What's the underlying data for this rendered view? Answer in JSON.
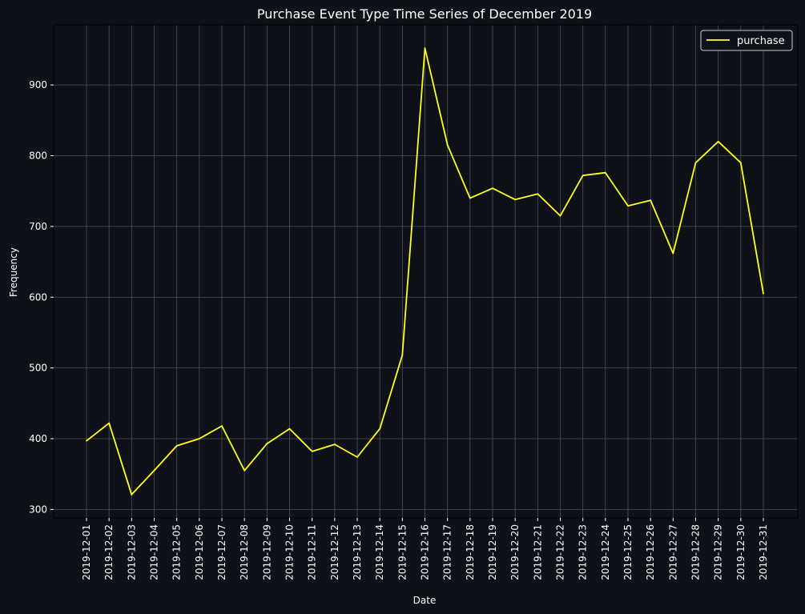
{
  "chart_data": {
    "type": "line",
    "title": "Purchase Event Type Time Series of December 2019",
    "xlabel": "Date",
    "ylabel": "Frequency",
    "x": [
      "2019-12-01",
      "2019-12-02",
      "2019-12-03",
      "2019-12-04",
      "2019-12-05",
      "2019-12-06",
      "2019-12-07",
      "2019-12-08",
      "2019-12-09",
      "2019-12-10",
      "2019-12-11",
      "2019-12-12",
      "2019-12-13",
      "2019-12-14",
      "2019-12-15",
      "2019-12-16",
      "2019-12-17",
      "2019-12-18",
      "2019-12-19",
      "2019-12-20",
      "2019-12-21",
      "2019-12-22",
      "2019-12-23",
      "2019-12-24",
      "2019-12-25",
      "2019-12-26",
      "2019-12-27",
      "2019-12-28",
      "2019-12-29",
      "2019-12-30",
      "2019-12-31"
    ],
    "series": [
      {
        "name": "purchase",
        "color": "#ffff1a",
        "values": [
          397,
          422,
          321,
          355,
          390,
          400,
          418,
          355,
          393,
          414,
          382,
          392,
          374,
          414,
          518,
          952,
          815,
          740,
          754,
          738,
          746,
          715,
          772,
          776,
          729,
          737,
          662,
          790,
          820,
          790,
          605
        ]
      }
    ],
    "yticks": [
      300,
      400,
      500,
      600,
      700,
      800,
      900
    ],
    "ylim": [
      288,
      985
    ],
    "grid": true,
    "legend_position": "top-right",
    "background_color": "#0f1118",
    "grid_color": "#4d4f55"
  }
}
